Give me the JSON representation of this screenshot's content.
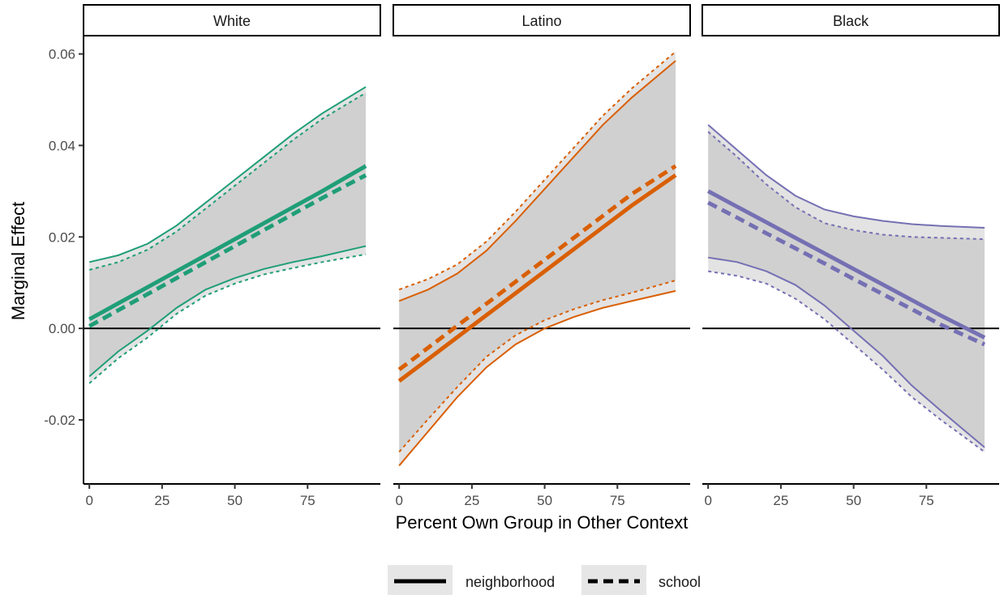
{
  "chart_data": {
    "type": "line",
    "xlabel": "Percent Own Group in Other Context",
    "ylabel": "Marginal Effect",
    "xlim": [
      -2,
      100
    ],
    "ylim": [
      -0.034,
      0.064
    ],
    "x_ticks": [
      0,
      25,
      50,
      75
    ],
    "y_ticks": [
      -0.02,
      0.0,
      0.02,
      0.04,
      0.06
    ],
    "x_tick_labels": [
      "0",
      "25",
      "50",
      "75"
    ],
    "y_tick_labels": [
      "-0.02",
      "0.00",
      "0.02",
      "0.04",
      "0.06"
    ],
    "reference_line_y": 0,
    "grid": false,
    "legend_position": "bottom",
    "legend": [
      {
        "name": "neighborhood",
        "linetype": "solid"
      },
      {
        "name": "school",
        "linetype": "dashed"
      }
    ],
    "panels": [
      {
        "name": "White",
        "color": "#1f9e77",
        "x": [
          0,
          10,
          20,
          30,
          40,
          50,
          60,
          70,
          80,
          95
        ],
        "series": [
          {
            "name": "neighborhood",
            "estimate": [
              0.002,
              0.0055,
              0.009,
              0.0125,
              0.016,
              0.0195,
              0.023,
              0.0265,
              0.03,
              0.0355
            ],
            "upper": [
              0.0145,
              0.016,
              0.0185,
              0.0225,
              0.0275,
              0.0325,
              0.0375,
              0.0425,
              0.047,
              0.0528
            ],
            "lower": [
              -0.0105,
              -0.005,
              -0.0005,
              0.0045,
              0.0085,
              0.011,
              0.013,
              0.0145,
              0.0158,
              0.018
            ]
          },
          {
            "name": "school",
            "estimate": [
              0.0005,
              0.004,
              0.0075,
              0.011,
              0.0145,
              0.018,
              0.0215,
              0.025,
              0.0285,
              0.0335
            ],
            "upper": [
              0.0128,
              0.0145,
              0.0172,
              0.0212,
              0.0262,
              0.0312,
              0.0362,
              0.0412,
              0.0458,
              0.0515
            ],
            "lower": [
              -0.012,
              -0.0065,
              -0.002,
              0.0032,
              0.0072,
              0.0098,
              0.0118,
              0.0132,
              0.0145,
              0.0162
            ]
          }
        ]
      },
      {
        "name": "Latino",
        "color": "#d95f02",
        "x": [
          0,
          10,
          20,
          30,
          40,
          50,
          60,
          70,
          80,
          95
        ],
        "series": [
          {
            "name": "neighborhood",
            "estimate": [
              -0.0115,
              -0.0067,
              -0.0019,
              0.0029,
              0.0077,
              0.0125,
              0.0173,
              0.0221,
              0.0269,
              0.0335
            ],
            "upper": [
              0.006,
              0.0085,
              0.012,
              0.017,
              0.0235,
              0.0305,
              0.0375,
              0.0445,
              0.0505,
              0.0585
            ],
            "lower": [
              -0.03,
              -0.0225,
              -0.015,
              -0.0085,
              -0.0035,
              0.0,
              0.0025,
              0.0045,
              0.006,
              0.0082
            ]
          },
          {
            "name": "school",
            "estimate": [
              -0.009,
              -0.0042,
              0.0006,
              0.0054,
              0.0102,
              0.015,
              0.0198,
              0.0246,
              0.0294,
              0.0355
            ],
            "upper": [
              0.0085,
              0.0108,
              0.014,
              0.019,
              0.0255,
              0.0325,
              0.0395,
              0.0465,
              0.0525,
              0.0605
            ],
            "lower": [
              -0.027,
              -0.0198,
              -0.0128,
              -0.0062,
              -0.0015,
              0.0018,
              0.0042,
              0.0062,
              0.0078,
              0.0105
            ]
          }
        ]
      },
      {
        "name": "Black",
        "color": "#7570b3",
        "x": [
          0,
          10,
          20,
          30,
          40,
          50,
          60,
          70,
          80,
          95
        ],
        "series": [
          {
            "name": "neighborhood",
            "estimate": [
              0.03,
              0.0266,
              0.0232,
              0.0198,
              0.0164,
              0.013,
              0.0096,
              0.0062,
              0.0028,
              -0.002
            ],
            "upper": [
              0.0445,
              0.039,
              0.0335,
              0.029,
              0.026,
              0.0245,
              0.0235,
              0.0228,
              0.0224,
              0.022
            ],
            "lower": [
              0.0155,
              0.0145,
              0.0125,
              0.0095,
              0.005,
              -0.0005,
              -0.006,
              -0.0125,
              -0.018,
              -0.026
            ]
          },
          {
            "name": "school",
            "estimate": [
              0.0275,
              0.0242,
              0.0208,
              0.0175,
              0.0142,
              0.0108,
              0.0075,
              0.0042,
              0.0008,
              -0.0035
            ],
            "upper": [
              0.043,
              0.0375,
              0.0315,
              0.0265,
              0.023,
              0.0215,
              0.0205,
              0.02,
              0.0198,
              0.0195
            ],
            "lower": [
              0.0125,
              0.0115,
              0.0098,
              0.0065,
              0.002,
              -0.0035,
              -0.009,
              -0.015,
              -0.02,
              -0.027
            ]
          }
        ]
      }
    ]
  }
}
